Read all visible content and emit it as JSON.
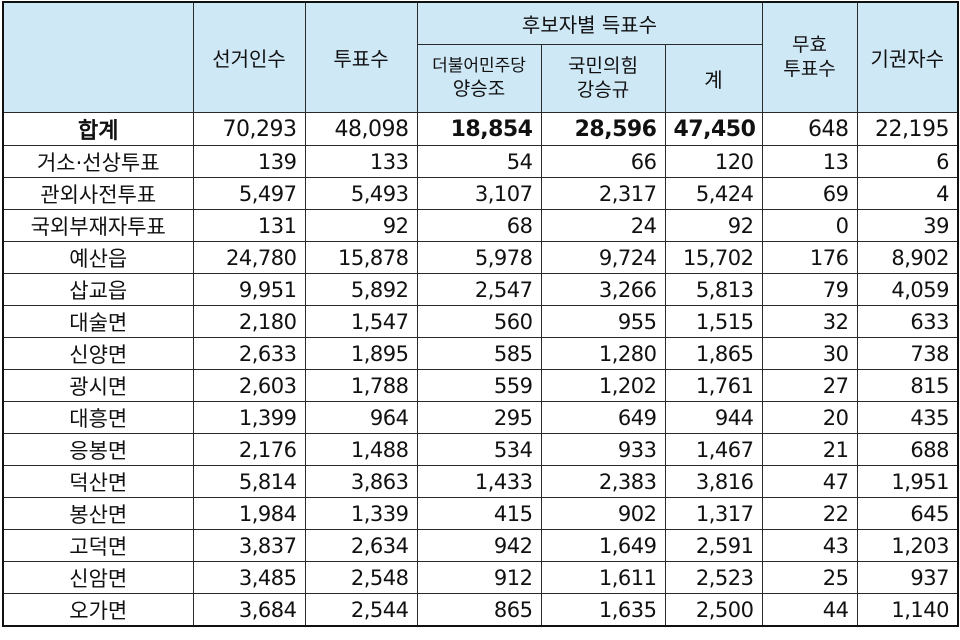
{
  "headers": {
    "electors": "선거인수",
    "votes": "투표수",
    "candidate_group": "후보자별 득표수",
    "cand1_party": "더불어민주당",
    "cand1_name": "양승조",
    "cand2_party": "국민의힘",
    "cand2_name": "강승규",
    "total": "계",
    "invalid_line1": "무효",
    "invalid_line2": "투표수",
    "abstain": "기권자수"
  },
  "total_row": {
    "label": "합계",
    "electors": "70,293",
    "votes": "48,098",
    "cand1": "18,854",
    "cand2": "28,596",
    "total": "47,450",
    "invalid": "648",
    "abstain": "22,195"
  },
  "rows": [
    {
      "label": "거소·선상투표",
      "electors": "139",
      "votes": "133",
      "cand1": "54",
      "cand2": "66",
      "total": "120",
      "invalid": "13",
      "abstain": "6"
    },
    {
      "label": "관외사전투표",
      "electors": "5,497",
      "votes": "5,493",
      "cand1": "3,107",
      "cand2": "2,317",
      "total": "5,424",
      "invalid": "69",
      "abstain": "4"
    },
    {
      "label": "국외부재자투표",
      "electors": "131",
      "votes": "92",
      "cand1": "68",
      "cand2": "24",
      "total": "92",
      "invalid": "0",
      "abstain": "39"
    },
    {
      "label": "예산읍",
      "electors": "24,780",
      "votes": "15,878",
      "cand1": "5,978",
      "cand2": "9,724",
      "total": "15,702",
      "invalid": "176",
      "abstain": "8,902"
    },
    {
      "label": "삽교읍",
      "electors": "9,951",
      "votes": "5,892",
      "cand1": "2,547",
      "cand2": "3,266",
      "total": "5,813",
      "invalid": "79",
      "abstain": "4,059"
    },
    {
      "label": "대술면",
      "electors": "2,180",
      "votes": "1,547",
      "cand1": "560",
      "cand2": "955",
      "total": "1,515",
      "invalid": "32",
      "abstain": "633"
    },
    {
      "label": "신양면",
      "electors": "2,633",
      "votes": "1,895",
      "cand1": "585",
      "cand2": "1,280",
      "total": "1,865",
      "invalid": "30",
      "abstain": "738"
    },
    {
      "label": "광시면",
      "electors": "2,603",
      "votes": "1,788",
      "cand1": "559",
      "cand2": "1,202",
      "total": "1,761",
      "invalid": "27",
      "abstain": "815"
    },
    {
      "label": "대흥면",
      "electors": "1,399",
      "votes": "964",
      "cand1": "295",
      "cand2": "649",
      "total": "944",
      "invalid": "20",
      "abstain": "435"
    },
    {
      "label": "응봉면",
      "electors": "2,176",
      "votes": "1,488",
      "cand1": "534",
      "cand2": "933",
      "total": "1,467",
      "invalid": "21",
      "abstain": "688"
    },
    {
      "label": "덕산면",
      "electors": "5,814",
      "votes": "3,863",
      "cand1": "1,433",
      "cand2": "2,383",
      "total": "3,816",
      "invalid": "47",
      "abstain": "1,951"
    },
    {
      "label": "봉산면",
      "electors": "1,984",
      "votes": "1,339",
      "cand1": "415",
      "cand2": "902",
      "total": "1,317",
      "invalid": "22",
      "abstain": "645"
    },
    {
      "label": "고덕면",
      "electors": "3,837",
      "votes": "2,634",
      "cand1": "942",
      "cand2": "1,649",
      "total": "2,591",
      "invalid": "43",
      "abstain": "1,203"
    },
    {
      "label": "신암면",
      "electors": "3,485",
      "votes": "2,548",
      "cand1": "912",
      "cand2": "1,611",
      "total": "2,523",
      "invalid": "25",
      "abstain": "937"
    },
    {
      "label": "오가면",
      "electors": "3,684",
      "votes": "2,544",
      "cand1": "865",
      "cand2": "1,635",
      "total": "2,500",
      "invalid": "44",
      "abstain": "1,140"
    }
  ],
  "colors": {
    "header_bg": "#cfe8f6",
    "border": "#2a2a2a"
  }
}
